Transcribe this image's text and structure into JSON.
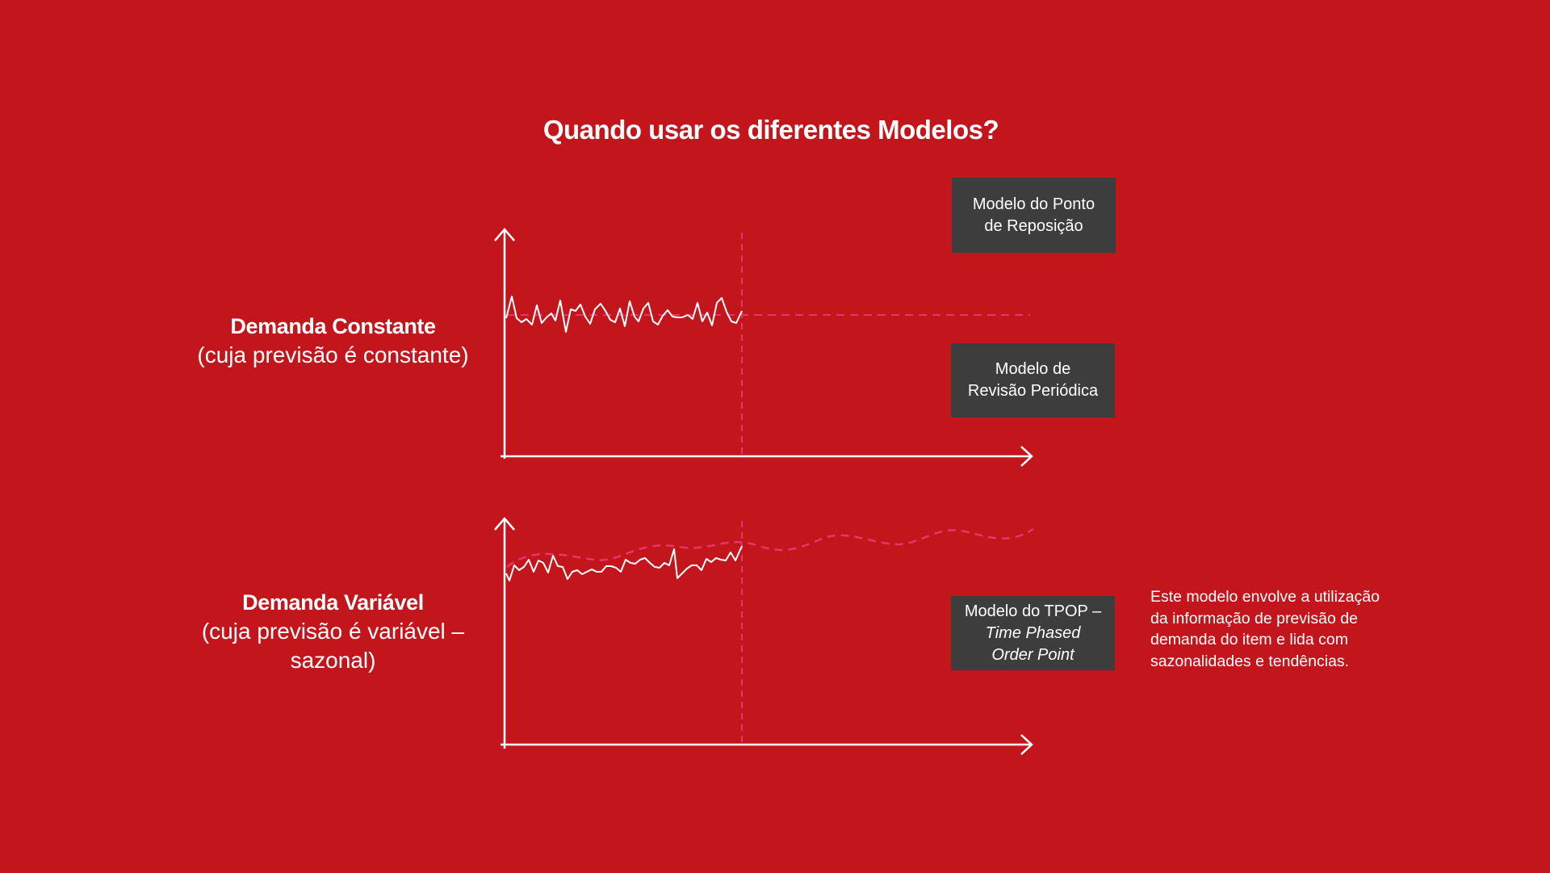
{
  "title": "Quando usar os diferentes Modelos?",
  "rows": [
    {
      "label_bold": "Demanda Constante",
      "label_sub_lines": [
        "(cuja previsão é constante)"
      ]
    },
    {
      "label_bold": "Demanda Variável",
      "label_sub_lines": [
        "(cuja previsão é variável –",
        "sazonal)"
      ]
    }
  ],
  "models": {
    "reorder_point": {
      "lines": [
        "Modelo do Ponto",
        "de Reposição"
      ]
    },
    "periodic_review": {
      "lines": [
        "Modelo de",
        "Revisão Periódica"
      ]
    },
    "tpop": {
      "line1": "Modelo do TPOP –",
      "line2": "Time Phased",
      "line3": "Order Point"
    }
  },
  "tpop_description_lines": [
    "Este modelo envolve a utilização",
    "da informação de previsão de",
    "demanda do item e lida com",
    "sazonalidades e tendências."
  ],
  "colors": {
    "background": "#c3161c",
    "box": "#3d3d3d",
    "forecast_dashed": "#e8336b",
    "axis": "#ffffff"
  }
}
